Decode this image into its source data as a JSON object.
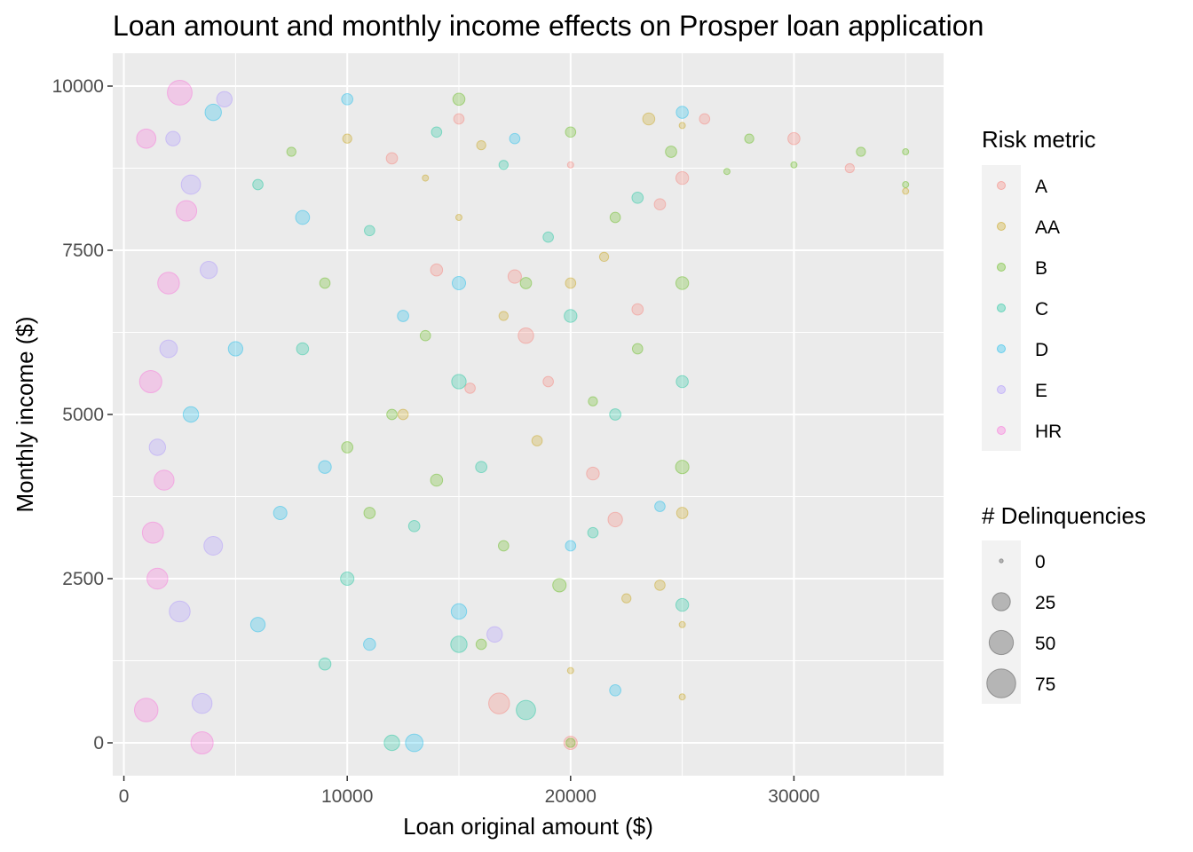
{
  "chart_data": {
    "type": "scatter",
    "title": "Loan amount and monthly income effects on Prosper loan application",
    "xlabel": "Loan original amount ($)",
    "ylabel": "Monthly income ($)",
    "xlim": [
      -500,
      36700
    ],
    "ylim": [
      -500,
      10500
    ],
    "x_ticks": [
      0,
      10000,
      20000,
      30000
    ],
    "y_ticks": [
      0,
      2500,
      5000,
      7500,
      10000
    ],
    "x_tick_labels": [
      "0",
      "10000",
      "20000",
      "30000"
    ],
    "y_tick_labels": [
      "0",
      "2500",
      "5000",
      "7500",
      "10000"
    ],
    "grid": true,
    "background": "#EBEBEB",
    "point_alpha": 0.25,
    "legend_position": "right",
    "color_legend": {
      "title": "Risk metric",
      "entries": [
        {
          "label": "A",
          "color": "#F8766D"
        },
        {
          "label": "AA",
          "color": "#C49A00"
        },
        {
          "label": "B",
          "color": "#53B400"
        },
        {
          "label": "C",
          "color": "#00C094"
        },
        {
          "label": "D",
          "color": "#00B6EB"
        },
        {
          "label": "E",
          "color": "#A58AFF"
        },
        {
          "label": "HR",
          "color": "#FB61D7"
        }
      ]
    },
    "size_legend": {
      "title": "# Delinquencies",
      "entries": [
        {
          "label": "0",
          "value": 0
        },
        {
          "label": "25",
          "value": 25
        },
        {
          "label": "50",
          "value": 50
        },
        {
          "label": "75",
          "value": 75
        }
      ]
    },
    "series": [
      {
        "name": "A",
        "points": [
          [
            15000,
            9500,
            2
          ],
          [
            20000,
            8800,
            0
          ],
          [
            25000,
            8600,
            5
          ],
          [
            18000,
            6200,
            10
          ],
          [
            22000,
            3400,
            8
          ],
          [
            16800,
            600,
            25
          ],
          [
            12000,
            8900,
            3
          ],
          [
            30000,
            9200,
            4
          ],
          [
            32500,
            8750,
            1
          ],
          [
            21000,
            4100,
            5
          ],
          [
            19000,
            5500,
            2
          ],
          [
            24000,
            8200,
            3
          ],
          [
            20000,
            0,
            6
          ],
          [
            26000,
            9500,
            2
          ],
          [
            14000,
            7200,
            4
          ],
          [
            17500,
            7100,
            6
          ],
          [
            23000,
            6600,
            3
          ],
          [
            15500,
            5400,
            2
          ]
        ]
      },
      {
        "name": "AA",
        "points": [
          [
            10000,
            9200,
            1
          ],
          [
            15000,
            8000,
            0
          ],
          [
            20000,
            7000,
            2
          ],
          [
            25000,
            9400,
            0
          ],
          [
            35000,
            8400,
            0
          ],
          [
            25000,
            3500,
            3
          ],
          [
            17000,
            6500,
            1
          ],
          [
            12500,
            5000,
            2
          ],
          [
            22500,
            2200,
            1
          ],
          [
            25000,
            1800,
            0
          ],
          [
            23500,
            9500,
            4
          ],
          [
            18500,
            4600,
            2
          ],
          [
            21500,
            7400,
            1
          ],
          [
            13500,
            8600,
            0
          ],
          [
            24000,
            2400,
            2
          ],
          [
            16000,
            9100,
            1
          ],
          [
            20000,
            1100,
            0
          ],
          [
            25000,
            700,
            0
          ]
        ]
      },
      {
        "name": "B",
        "points": [
          [
            7500,
            9000,
            1
          ],
          [
            10000,
            4500,
            3
          ],
          [
            12000,
            5000,
            2
          ],
          [
            15000,
            9800,
            4
          ],
          [
            20000,
            9300,
            2
          ],
          [
            25000,
            7000,
            5
          ],
          [
            25000,
            4200,
            6
          ],
          [
            18000,
            7000,
            3
          ],
          [
            35000,
            9000,
            0
          ],
          [
            35000,
            8500,
            0
          ],
          [
            22000,
            8000,
            2
          ],
          [
            28000,
            9200,
            1
          ],
          [
            16000,
            1500,
            2
          ],
          [
            19500,
            2400,
            6
          ],
          [
            11000,
            3500,
            3
          ],
          [
            13500,
            6200,
            2
          ],
          [
            21000,
            5200,
            1
          ],
          [
            24500,
            9000,
            3
          ],
          [
            9000,
            7000,
            2
          ],
          [
            14000,
            4000,
            4
          ],
          [
            17000,
            3000,
            2
          ],
          [
            27000,
            8700,
            0
          ],
          [
            30000,
            8800,
            0
          ],
          [
            33000,
            9000,
            1
          ],
          [
            23000,
            6000,
            2
          ],
          [
            20000,
            0,
            1
          ]
        ]
      },
      {
        "name": "C",
        "points": [
          [
            6000,
            8500,
            2
          ],
          [
            8000,
            6000,
            4
          ],
          [
            10000,
            2500,
            6
          ],
          [
            13000,
            3300,
            3
          ],
          [
            15000,
            5500,
            8
          ],
          [
            15000,
            1500,
            12
          ],
          [
            18000,
            500,
            20
          ],
          [
            20000,
            6500,
            5
          ],
          [
            23000,
            8300,
            3
          ],
          [
            25000,
            5500,
            4
          ],
          [
            25000,
            2100,
            5
          ],
          [
            11000,
            7800,
            2
          ],
          [
            9000,
            1200,
            4
          ],
          [
            14000,
            9300,
            2
          ],
          [
            16000,
            4200,
            3
          ],
          [
            21000,
            3200,
            2
          ],
          [
            12000,
            0,
            10
          ],
          [
            17000,
            8800,
            1
          ],
          [
            19000,
            7700,
            2
          ],
          [
            22000,
            5000,
            3
          ]
        ]
      },
      {
        "name": "D",
        "points": [
          [
            3000,
            5000,
            10
          ],
          [
            5000,
            6000,
            8
          ],
          [
            7000,
            3500,
            6
          ],
          [
            9000,
            4200,
            5
          ],
          [
            10000,
            9800,
            3
          ],
          [
            13000,
            0,
            15
          ],
          [
            15000,
            2000,
            10
          ],
          [
            15000,
            7000,
            6
          ],
          [
            20000,
            3000,
            2
          ],
          [
            25000,
            9600,
            4
          ],
          [
            22000,
            800,
            3
          ],
          [
            11000,
            1500,
            4
          ],
          [
            8000,
            8000,
            7
          ],
          [
            12500,
            6500,
            3
          ],
          [
            17500,
            9200,
            2
          ],
          [
            24000,
            3600,
            2
          ],
          [
            6000,
            1800,
            8
          ],
          [
            4000,
            9600,
            12
          ]
        ]
      },
      {
        "name": "E",
        "points": [
          [
            2000,
            6000,
            15
          ],
          [
            3000,
            8500,
            20
          ],
          [
            4000,
            3000,
            18
          ],
          [
            4500,
            9800,
            10
          ],
          [
            3500,
            600,
            22
          ],
          [
            1500,
            4500,
            12
          ],
          [
            2500,
            2000,
            25
          ],
          [
            16600,
            1650,
            10
          ],
          [
            3800,
            7200,
            14
          ],
          [
            2200,
            9200,
            8
          ]
        ]
      },
      {
        "name": "HR",
        "points": [
          [
            1000,
            9200,
            20
          ],
          [
            1200,
            5500,
            30
          ],
          [
            1500,
            2500,
            25
          ],
          [
            1000,
            500,
            35
          ],
          [
            2000,
            7000,
            28
          ],
          [
            2500,
            9900,
            40
          ],
          [
            3500,
            0,
            30
          ],
          [
            1800,
            4000,
            22
          ],
          [
            1300,
            3200,
            26
          ],
          [
            2800,
            8100,
            24
          ]
        ]
      }
    ]
  }
}
